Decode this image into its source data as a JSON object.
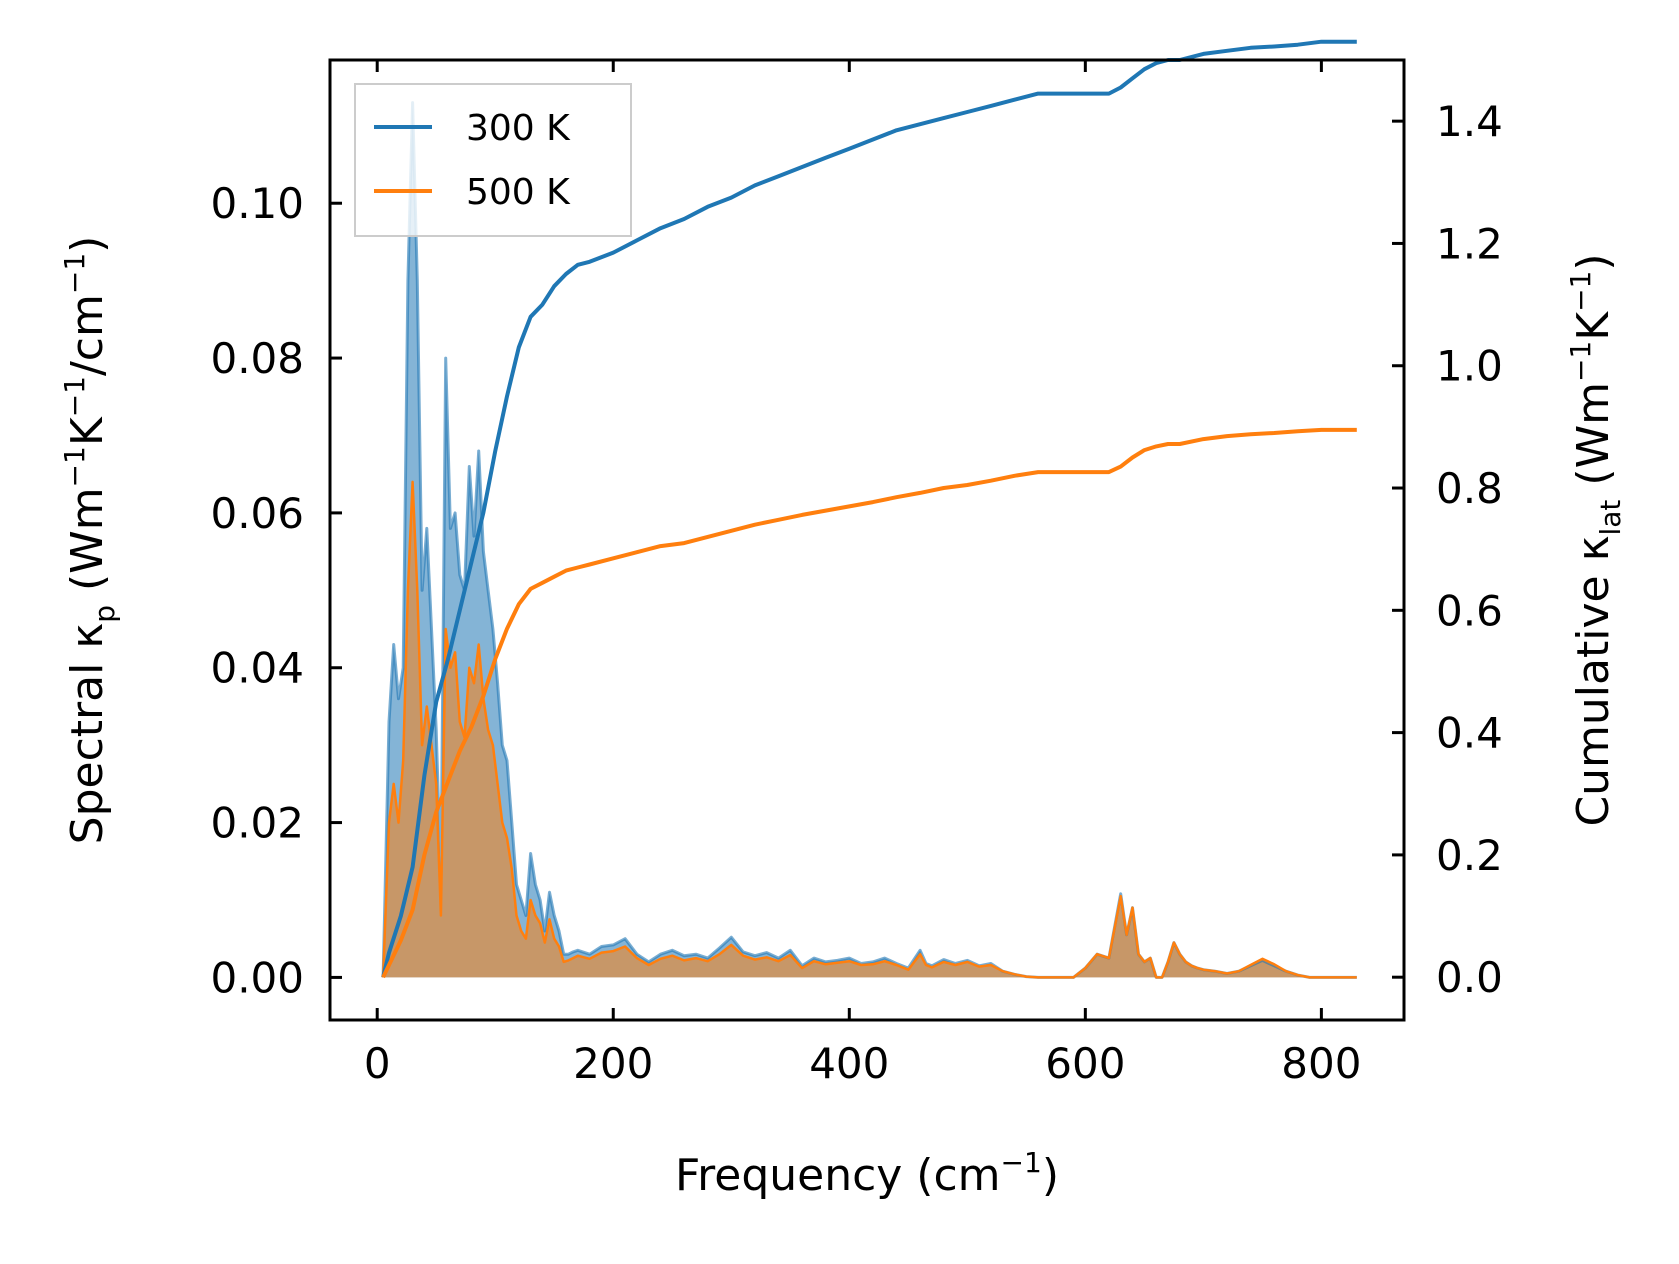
{
  "chart_data": {
    "type": "line",
    "twin_y_axes": true,
    "xlabel": "Frequency (cm⁻¹)",
    "xlabel_parts": {
      "main": "Frequency (cm",
      "sup": "−1",
      "end": ")"
    },
    "ylabel_left": "Spectral κₚ (Wm⁻¹K⁻¹/cm⁻¹)",
    "ylabel_left_parts": {
      "a": "Spectral κ",
      "sub": "p",
      "b": " (Wm",
      "sup1": "−1",
      "c": "K",
      "sup2": "−1",
      "d": "/cm",
      "sup3": "−1",
      "e": ")"
    },
    "ylabel_right": "Cumulative κ_lat (Wm⁻¹K⁻¹)",
    "ylabel_right_parts": {
      "a": "Cumulative κ",
      "sub": "lat",
      "b": " (Wm",
      "sup1": "−1",
      "c": "K",
      "sup2": "−1",
      "e": ")"
    },
    "xlim": [
      -40,
      870
    ],
    "ylim_left": [
      -0.0055,
      0.1185
    ],
    "ylim_right": [
      -0.07,
      1.5
    ],
    "xticks": [
      0,
      200,
      400,
      600,
      800
    ],
    "xtick_labels": [
      "0",
      "200",
      "400",
      "600",
      "800"
    ],
    "yticks_left": [
      0.0,
      0.02,
      0.04,
      0.06,
      0.08,
      0.1
    ],
    "ytick_labels_left": [
      "0.00",
      "0.02",
      "0.04",
      "0.06",
      "0.08",
      "0.10"
    ],
    "yticks_right": [
      0.0,
      0.2,
      0.4,
      0.6,
      0.8,
      1.0,
      1.2,
      1.4
    ],
    "ytick_labels_right": [
      "0.0",
      "0.2",
      "0.4",
      "0.6",
      "0.8",
      "1.0",
      "1.2",
      "1.4"
    ],
    "legend": {
      "position": "top-left",
      "entries": [
        "300 K",
        "500 K"
      ]
    },
    "series": [
      {
        "name": "300 K",
        "color": "#1f77b4",
        "spectral": {
          "x": [
            5,
            10,
            14,
            18,
            22,
            26,
            30,
            34,
            38,
            42,
            46,
            50,
            54,
            58,
            62,
            66,
            70,
            74,
            78,
            82,
            86,
            90,
            94,
            98,
            102,
            106,
            110,
            114,
            118,
            122,
            126,
            130,
            134,
            138,
            142,
            146,
            150,
            154,
            158,
            162,
            166,
            170,
            180,
            190,
            200,
            210,
            220,
            230,
            240,
            250,
            260,
            270,
            280,
            290,
            300,
            310,
            320,
            330,
            340,
            350,
            360,
            370,
            380,
            390,
            400,
            410,
            420,
            430,
            440,
            450,
            460,
            465,
            470,
            480,
            490,
            500,
            510,
            520,
            530,
            540,
            550,
            560,
            570,
            580,
            590,
            600,
            610,
            620,
            630,
            635,
            640,
            645,
            650,
            655,
            660,
            665,
            670,
            675,
            680,
            685,
            690,
            695,
            700,
            710,
            720,
            730,
            740,
            750,
            760,
            770,
            780,
            790,
            800,
            810,
            820,
            830
          ],
          "y": [
            0.0,
            0.033,
            0.043,
            0.036,
            0.04,
            0.09,
            0.113,
            0.09,
            0.05,
            0.058,
            0.045,
            0.032,
            0.012,
            0.08,
            0.058,
            0.06,
            0.052,
            0.05,
            0.066,
            0.057,
            0.068,
            0.055,
            0.05,
            0.045,
            0.038,
            0.03,
            0.028,
            0.02,
            0.012,
            0.01,
            0.008,
            0.016,
            0.012,
            0.01,
            0.006,
            0.011,
            0.008,
            0.006,
            0.003,
            0.003,
            0.0033,
            0.0035,
            0.003,
            0.004,
            0.0042,
            0.005,
            0.003,
            0.002,
            0.003,
            0.0035,
            0.0028,
            0.003,
            0.0025,
            0.0038,
            0.0052,
            0.0033,
            0.0028,
            0.0032,
            0.0025,
            0.0035,
            0.0015,
            0.0025,
            0.002,
            0.0022,
            0.0025,
            0.0018,
            0.002,
            0.0025,
            0.0018,
            0.0012,
            0.0035,
            0.0018,
            0.0015,
            0.0023,
            0.0018,
            0.0022,
            0.0015,
            0.0018,
            0.0008,
            0.0004,
            0.0001,
            0.0,
            0.0,
            0.0,
            0.0,
            0.0012,
            0.003,
            0.0025,
            0.0108,
            0.0055,
            0.009,
            0.003,
            0.002,
            0.0025,
            0.0,
            0.0,
            0.002,
            0.0045,
            0.003,
            0.002,
            0.0015,
            0.0012,
            0.001,
            0.0008,
            0.0005,
            0.0008,
            0.0015,
            0.0022,
            0.0015,
            0.0008,
            0.0003,
            0.0,
            0.0,
            0.0,
            0.0,
            0.0
          ],
          "y_alt": [
            0.0,
            0.02,
            0.025,
            0.02,
            0.028,
            0.05,
            0.064,
            0.05,
            0.03,
            0.035,
            0.03,
            0.025,
            0.008,
            0.045,
            0.04,
            0.042,
            0.033,
            0.031,
            0.04,
            0.038,
            0.043,
            0.036,
            0.032,
            0.03,
            0.025,
            0.02,
            0.018,
            0.014,
            0.008,
            0.006,
            0.005,
            0.01,
            0.008,
            0.007,
            0.0045,
            0.0075,
            0.005,
            0.004,
            0.002,
            0.0022,
            0.0025,
            0.0028,
            0.0024,
            0.0032,
            0.0034,
            0.004,
            0.0025,
            0.0016,
            0.0024,
            0.0028,
            0.0022,
            0.0025,
            0.0021,
            0.003,
            0.0042,
            0.0028,
            0.0023,
            0.0026,
            0.0021,
            0.0029,
            0.0012,
            0.0021,
            0.0017,
            0.0019,
            0.0021,
            0.0016,
            0.0017,
            0.0021,
            0.0016,
            0.001,
            0.003,
            0.0016,
            0.0013,
            0.002,
            0.0016,
            0.002,
            0.0014,
            0.0016,
            0.0008,
            0.0004,
            0.0001,
            0.0,
            0.0,
            0.0,
            0.0,
            0.0012,
            0.003,
            0.0025,
            0.0105,
            0.0055,
            0.009,
            0.003,
            0.002,
            0.0025,
            0.0,
            0.0,
            0.002,
            0.0045,
            0.003,
            0.002,
            0.0015,
            0.0012,
            0.001,
            0.0008,
            0.0005,
            0.0008,
            0.0016,
            0.0024,
            0.0017,
            0.0008,
            0.0003,
            0.0,
            0.0,
            0.0,
            0.0,
            0.0
          ]
        },
        "cumulative": {
          "x": [
            5,
            10,
            20,
            30,
            40,
            50,
            60,
            70,
            80,
            90,
            100,
            110,
            120,
            130,
            140,
            150,
            160,
            170,
            180,
            200,
            220,
            240,
            260,
            280,
            300,
            320,
            340,
            360,
            380,
            400,
            420,
            440,
            460,
            480,
            500,
            520,
            540,
            560,
            580,
            600,
            620,
            630,
            640,
            650,
            660,
            670,
            680,
            700,
            720,
            740,
            760,
            780,
            800,
            820,
            830
          ],
          "y": [
            0.0,
            0.04,
            0.1,
            0.18,
            0.33,
            0.45,
            0.52,
            0.6,
            0.68,
            0.76,
            0.86,
            0.95,
            1.03,
            1.08,
            1.1,
            1.13,
            1.15,
            1.165,
            1.17,
            1.185,
            1.205,
            1.225,
            1.24,
            1.26,
            1.275,
            1.295,
            1.31,
            1.325,
            1.34,
            1.355,
            1.37,
            1.385,
            1.395,
            1.405,
            1.415,
            1.425,
            1.435,
            1.445,
            1.445,
            1.445,
            1.445,
            1.455,
            1.47,
            1.485,
            1.495,
            1.5,
            1.5,
            1.51,
            1.515,
            1.52,
            1.522,
            1.525,
            1.53,
            1.53,
            1.53
          ]
        }
      },
      {
        "name": "500 K",
        "color": "#ff7f0e",
        "cumulative": {
          "x": [
            5,
            10,
            20,
            30,
            40,
            50,
            60,
            70,
            80,
            90,
            100,
            110,
            120,
            130,
            140,
            150,
            160,
            170,
            180,
            200,
            220,
            240,
            260,
            280,
            300,
            320,
            340,
            360,
            380,
            400,
            420,
            440,
            460,
            480,
            500,
            520,
            540,
            560,
            580,
            600,
            620,
            630,
            640,
            650,
            660,
            670,
            680,
            700,
            720,
            740,
            760,
            780,
            800,
            820,
            830
          ],
          "y": [
            0.0,
            0.02,
            0.06,
            0.11,
            0.2,
            0.27,
            0.32,
            0.37,
            0.41,
            0.46,
            0.52,
            0.57,
            0.61,
            0.635,
            0.645,
            0.655,
            0.665,
            0.67,
            0.675,
            0.685,
            0.695,
            0.705,
            0.71,
            0.72,
            0.73,
            0.74,
            0.748,
            0.756,
            0.763,
            0.77,
            0.777,
            0.785,
            0.792,
            0.8,
            0.805,
            0.812,
            0.82,
            0.826,
            0.826,
            0.826,
            0.826,
            0.835,
            0.85,
            0.862,
            0.868,
            0.872,
            0.872,
            0.88,
            0.885,
            0.888,
            0.89,
            0.893,
            0.895,
            0.895,
            0.895
          ]
        }
      }
    ]
  }
}
